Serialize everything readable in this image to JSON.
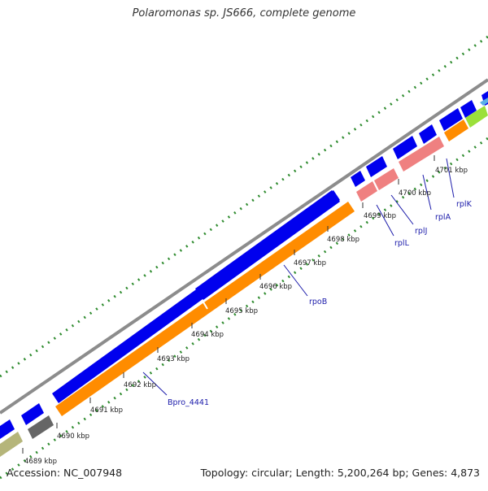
{
  "title": "Polaromonas sp. JS666, complete genome",
  "footer": {
    "accession": "Accession: NC_007948",
    "summary": "Topology: circular; Length: 5,200,264 bp; Genes: 4,873"
  },
  "colors": {
    "forward_gene": "#0000ee",
    "cds": "#ff8c00",
    "rrna": "#ef8080",
    "gene_label": "#1a1aaa",
    "gc_skew_ticks": "#2e8b2e",
    "backbone": "#8c8c8c"
  },
  "ticks": [
    "4689 kbp",
    "4690 kbp",
    "4691 kbp",
    "4692 kbp",
    "4693 kbp",
    "4694 kbp",
    "4695 kbp",
    "4696 kbp",
    "4697 kbp",
    "4698 kbp",
    "4699 kbp",
    "4700 kbp",
    "4701 kbp"
  ],
  "gene_labels": [
    "Bpro_4441",
    "rpoB",
    "rplL",
    "rplJ",
    "rplA",
    "rplK"
  ]
}
